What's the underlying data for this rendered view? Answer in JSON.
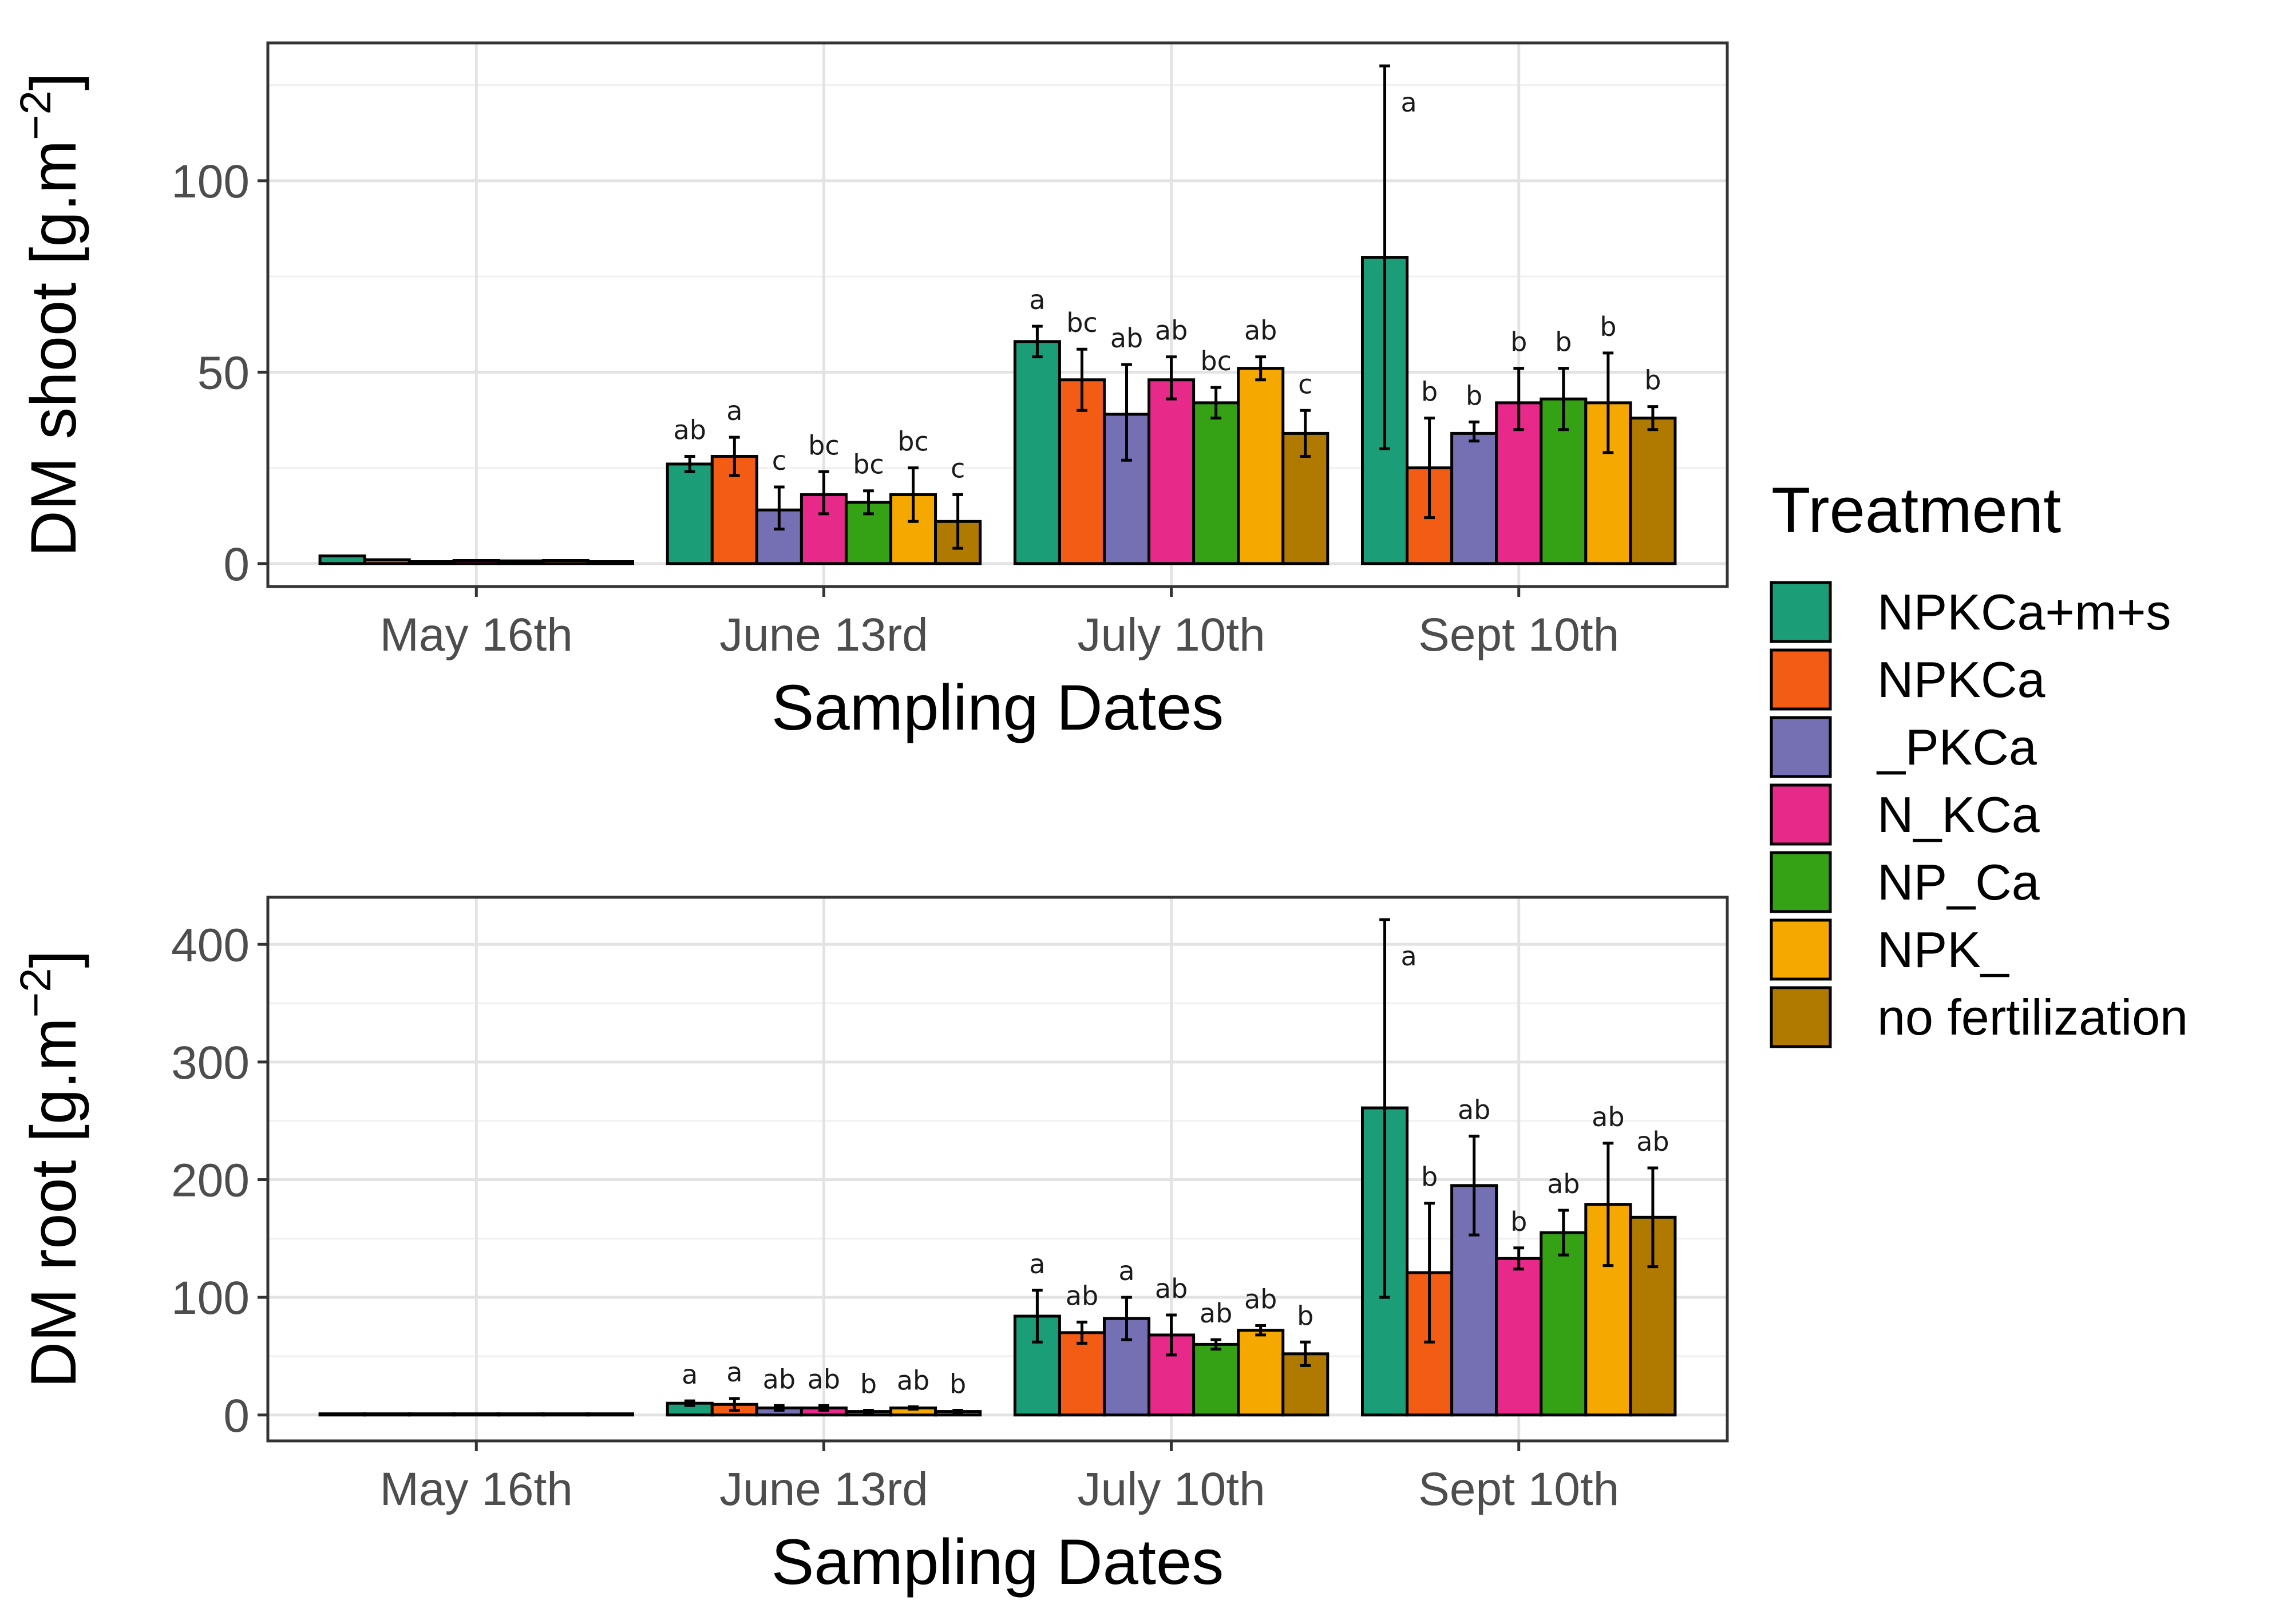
{
  "chart_data": [
    {
      "type": "bar",
      "panel": "top",
      "ylabel": "DM shoot [g.m",
      "ylabel_exponent": "−2",
      "ylabel_close": "]",
      "xlabel": "Sampling Dates",
      "ylim": [
        -6,
        136
      ],
      "yticks": [
        0,
        50,
        100
      ],
      "categories": [
        "May 16th",
        "June 13rd",
        "July 10th",
        "Sept 10th"
      ],
      "series": [
        {
          "name": "NPKCa+m+s",
          "values": [
            2,
            26,
            58,
            80
          ],
          "err_low": [
            1.5,
            24,
            54,
            30
          ],
          "err_high": [
            2.5,
            28,
            62,
            130
          ],
          "sig": [
            "",
            "ab",
            "a",
            "a"
          ]
        },
        {
          "name": "NPKCa",
          "values": [
            1,
            28,
            48,
            25
          ],
          "err_low": [
            0.5,
            23,
            40,
            12
          ],
          "err_high": [
            1.5,
            33,
            56,
            38
          ],
          "sig": [
            "",
            "a",
            "bc",
            "b"
          ]
        },
        {
          "name": "_PKCa",
          "values": [
            0.5,
            14,
            39,
            34
          ],
          "err_low": [
            0.3,
            9,
            27,
            32
          ],
          "err_high": [
            0.7,
            20,
            52,
            37
          ],
          "sig": [
            "",
            "c",
            "ab",
            "b"
          ]
        },
        {
          "name": "N_KCa",
          "values": [
            0.8,
            18,
            48,
            42
          ],
          "err_low": [
            0.5,
            13,
            43,
            35
          ],
          "err_high": [
            1.1,
            24,
            54,
            51
          ],
          "sig": [
            "",
            "bc",
            "ab",
            "b"
          ]
        },
        {
          "name": "NP_Ca",
          "values": [
            0.7,
            16,
            42,
            43
          ],
          "err_low": [
            0.5,
            13,
            38,
            35
          ],
          "err_high": [
            0.9,
            19,
            46,
            51
          ],
          "sig": [
            "",
            "bc",
            "bc",
            "b"
          ]
        },
        {
          "name": "NPK_",
          "values": [
            0.8,
            18,
            51,
            42
          ],
          "err_low": [
            0.5,
            11,
            48,
            29
          ],
          "err_high": [
            1.1,
            25,
            54,
            55
          ],
          "sig": [
            "",
            "bc",
            "ab",
            "b"
          ]
        },
        {
          "name": "no fertilization",
          "values": [
            0.5,
            11,
            34,
            38
          ],
          "err_low": [
            0.3,
            4,
            28,
            35
          ],
          "err_high": [
            0.7,
            18,
            40,
            41
          ],
          "sig": [
            "",
            "c",
            "c",
            "b"
          ]
        }
      ]
    },
    {
      "type": "bar",
      "panel": "bottom",
      "ylabel": "DM root [g.m",
      "ylabel_exponent": "−2",
      "ylabel_close": "]",
      "xlabel": "Sampling Dates",
      "ylim": [
        -22,
        440
      ],
      "yticks": [
        0,
        100,
        200,
        300,
        400
      ],
      "categories": [
        "May 16th",
        "June 13rd",
        "July 10th",
        "Sept 10th"
      ],
      "series": [
        {
          "name": "NPKCa+m+s",
          "values": [
            1,
            10,
            84,
            261
          ],
          "err_low": [
            0.5,
            8,
            62,
            100
          ],
          "err_high": [
            1.5,
            12,
            106,
            421
          ],
          "sig": [
            "",
            "a",
            "a",
            "a"
          ]
        },
        {
          "name": "NPKCa",
          "values": [
            1,
            9,
            70,
            121
          ],
          "err_low": [
            0.5,
            4,
            61,
            62
          ],
          "err_high": [
            1.5,
            14,
            79,
            180
          ],
          "sig": [
            "",
            "a",
            "ab",
            "b"
          ]
        },
        {
          "name": "_PKCa",
          "values": [
            1,
            6,
            82,
            195
          ],
          "err_low": [
            0.5,
            4,
            64,
            153
          ],
          "err_high": [
            1.5,
            8,
            100,
            237
          ],
          "sig": [
            "",
            "ab",
            "a",
            "ab"
          ]
        },
        {
          "name": "N_KCa",
          "values": [
            1,
            6,
            68,
            133
          ],
          "err_low": [
            0.5,
            4,
            51,
            124
          ],
          "err_high": [
            1.5,
            8,
            85,
            142
          ],
          "sig": [
            "",
            "ab",
            "ab",
            "b"
          ]
        },
        {
          "name": "NP_Ca",
          "values": [
            1,
            3,
            60,
            155
          ],
          "err_low": [
            0.5,
            2,
            56,
            136
          ],
          "err_high": [
            1.5,
            4,
            64,
            174
          ],
          "sig": [
            "",
            "b",
            "ab",
            "ab"
          ]
        },
        {
          "name": "NPK_",
          "values": [
            1,
            6,
            72,
            179
          ],
          "err_low": [
            0.5,
            5,
            68,
            127
          ],
          "err_high": [
            1.5,
            7,
            76,
            231
          ],
          "sig": [
            "",
            "ab",
            "ab",
            "ab"
          ]
        },
        {
          "name": "no fertilization",
          "values": [
            1,
            3,
            52,
            168
          ],
          "err_low": [
            0.5,
            2,
            42,
            126
          ],
          "err_high": [
            1.5,
            4,
            62,
            210
          ],
          "sig": [
            "",
            "b",
            "b",
            "ab"
          ]
        }
      ]
    }
  ],
  "legend": {
    "title": "Treatment",
    "items": [
      {
        "label": "NPKCa+m+s",
        "color": "#1b9e77"
      },
      {
        "label": "NPKCa",
        "color": "#f25c14"
      },
      {
        "label": "_PKCa",
        "color": "#7570b3"
      },
      {
        "label": "N_KCa",
        "color": "#e7298a"
      },
      {
        "label": "NP_Ca",
        "color": "#35a114"
      },
      {
        "label": "NPK_",
        "color": "#f5a800"
      },
      {
        "label": "no fertilization",
        "color": "#b07a00"
      }
    ]
  }
}
